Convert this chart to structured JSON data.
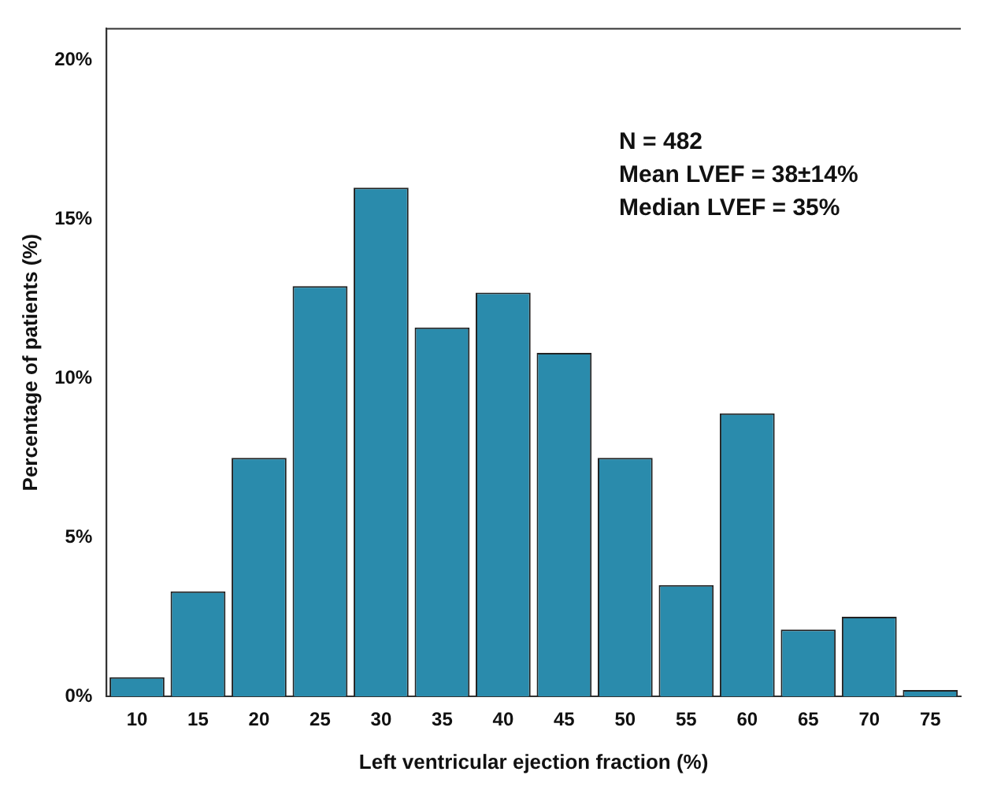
{
  "chart_data": {
    "type": "bar",
    "xlabel": "Left ventricular ejection fraction (%)",
    "ylabel": "Percentage of patients (%)",
    "categories": [
      "10",
      "15",
      "20",
      "25",
      "30",
      "35",
      "40",
      "45",
      "50",
      "55",
      "60",
      "65",
      "70",
      "75"
    ],
    "values": [
      0.6,
      3.3,
      7.5,
      12.9,
      16.0,
      11.6,
      12.7,
      10.8,
      7.5,
      3.5,
      8.9,
      2.1,
      2.5,
      0.2
    ],
    "color": "#2a8bac",
    "ylim": [
      0,
      21
    ],
    "yticks": [
      {
        "value": 0,
        "label": "0%"
      },
      {
        "value": 5,
        "label": "5%"
      },
      {
        "value": 10,
        "label": "10%"
      },
      {
        "value": 15,
        "label": "15%"
      },
      {
        "value": 20,
        "label": "20%"
      }
    ],
    "annotations": [
      "N = 482",
      "Mean LVEF = 38±14%",
      "Median LVEF = 35%"
    ],
    "grid": false,
    "legend": false
  }
}
